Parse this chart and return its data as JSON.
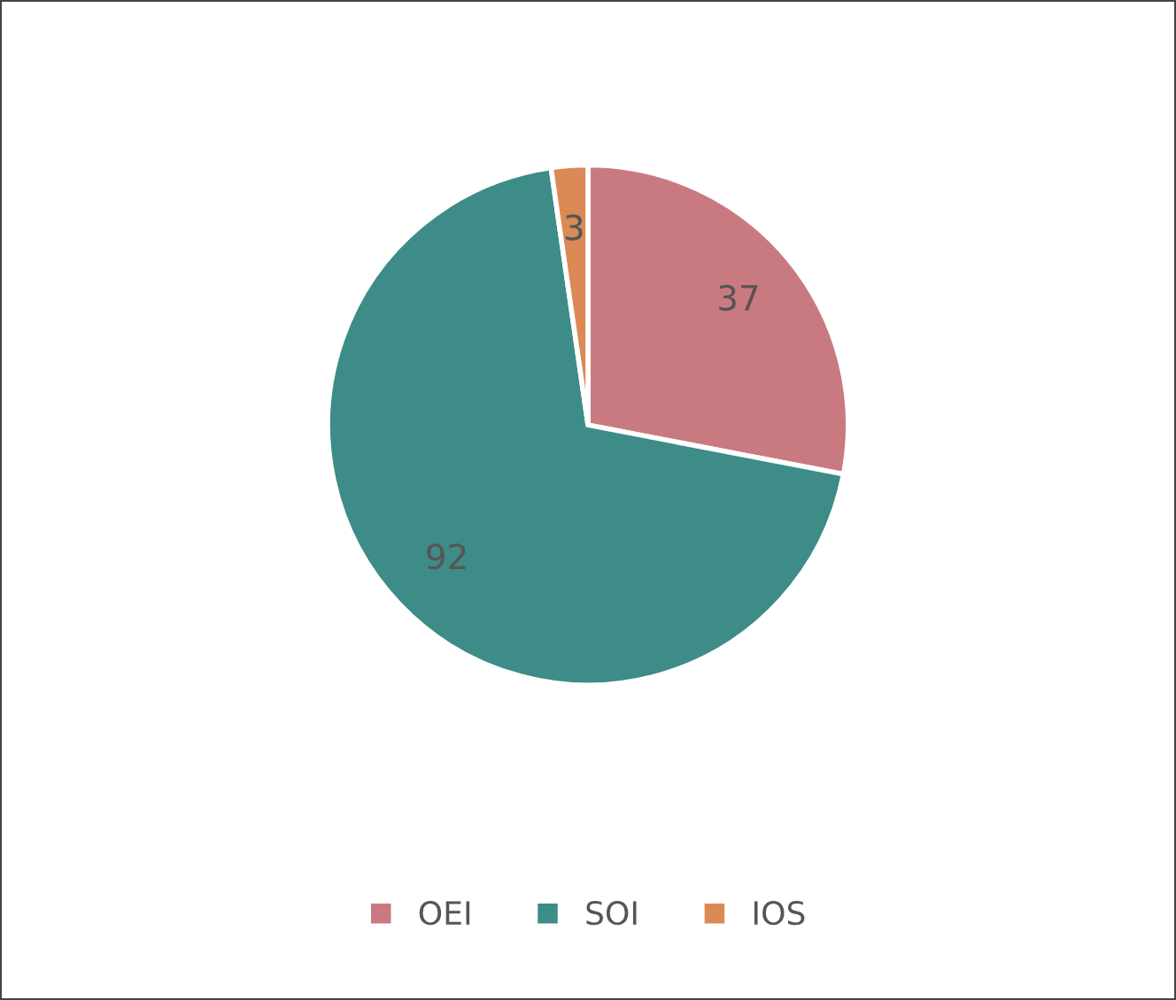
{
  "chart_data": {
    "type": "pie",
    "categories": [
      "OEI",
      "SOI",
      "IOS"
    ],
    "values": [
      37,
      92,
      3
    ],
    "colors": [
      "#c97a80",
      "#3d8c87",
      "#d98a55"
    ],
    "data_labels": true,
    "legend": "bottom"
  }
}
